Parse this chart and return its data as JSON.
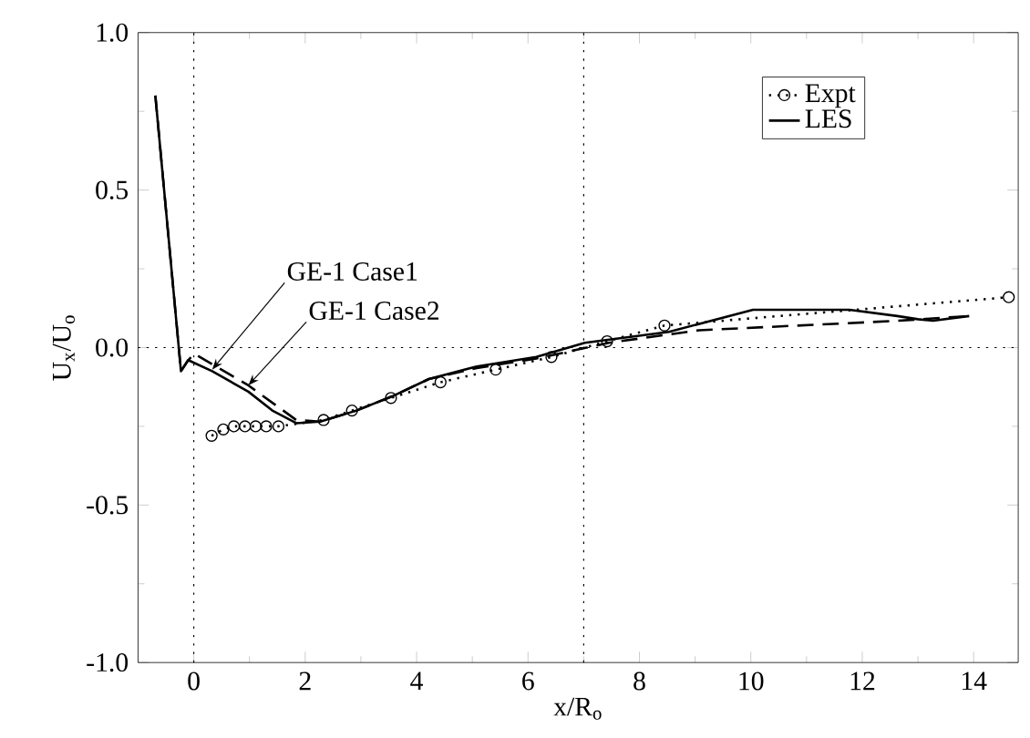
{
  "chart_data": {
    "type": "line",
    "xlabel": "x/R$_{o}$",
    "ylabel": "U$_{x}$/U$_{o}$",
    "xlim": [
      -1,
      14.8
    ],
    "ylim": [
      -1,
      1
    ],
    "xticks": [
      0,
      2,
      4,
      6,
      8,
      10,
      12,
      14
    ],
    "yticks": [
      {
        "value": -1,
        "label": "-1.0"
      },
      {
        "value": -0.5,
        "label": "-0.5"
      },
      {
        "value": 0,
        "label": "0.0"
      },
      {
        "value": 0.5,
        "label": "0.5"
      },
      {
        "value": 1,
        "label": "1.0"
      }
    ],
    "grid": false,
    "legend": "top right",
    "series": [
      {
        "name": "Expt",
        "color": "#000000",
        "marker": "circle",
        "line_style": "dotted",
        "x": [
          0.32,
          0.53,
          0.72,
          0.92,
          1.11,
          1.3,
          1.52,
          2.33,
          2.84,
          3.54,
          4.43,
          5.42,
          6.42,
          7.42,
          8.45,
          14.63
        ],
        "values": [
          -0.28,
          -0.26,
          -0.25,
          -0.25,
          -0.25,
          -0.25,
          -0.25,
          -0.23,
          -0.2,
          -0.16,
          -0.11,
          -0.07,
          -0.03,
          0.02,
          0.07,
          0.16
        ]
      },
      {
        "name": "LES",
        "color": "#000000",
        "marker": "none",
        "line_style": "solid",
        "x": [
          -0.69,
          -0.23,
          -0.1,
          0.33,
          0.98,
          1.41,
          1.84,
          2.27,
          2.92,
          3.56,
          4.22,
          5.08,
          6.15,
          7.02,
          8.53,
          10.04,
          11.77,
          12.63,
          13.0,
          13.27,
          13.92
        ],
        "values": [
          0.8,
          -0.075,
          -0.04,
          -0.075,
          -0.14,
          -0.2,
          -0.24,
          -0.235,
          -0.2,
          -0.155,
          -0.1,
          -0.06,
          -0.03,
          0.015,
          0.05,
          0.12,
          0.12,
          0.1,
          0.09,
          0.085,
          0.1
        ]
      },
      {
        "color": "#000000",
        "marker": "none",
        "line_style": "dashed",
        "x": [
          -0.69,
          -0.23,
          -0.1,
          0.01,
          0.98,
          1.84,
          2.27,
          2.92,
          3.56,
          4.22,
          5.08,
          6.15,
          7.45,
          9.07,
          11.23,
          12.63,
          13.93
        ],
        "values": [
          0.8,
          -0.075,
          -0.04,
          -0.02,
          -0.12,
          -0.23,
          -0.235,
          -0.2,
          -0.155,
          -0.1,
          -0.065,
          -0.035,
          0.015,
          0.055,
          0.073,
          0.085,
          0.1
        ]
      }
    ],
    "ref_lines": [
      {
        "axis": "x",
        "value": 0,
        "line_style": "dotted"
      },
      {
        "axis": "x",
        "value": 7,
        "line_style": "dotted"
      },
      {
        "axis": "y",
        "value": 0,
        "line_style": "dotted"
      }
    ],
    "annotations": [
      {
        "text": "GE-1 Case1",
        "x": 0.33,
        "y": -0.07
      },
      {
        "text": "GE-1 Case2",
        "x": 0.98,
        "y": -0.12
      }
    ]
  }
}
